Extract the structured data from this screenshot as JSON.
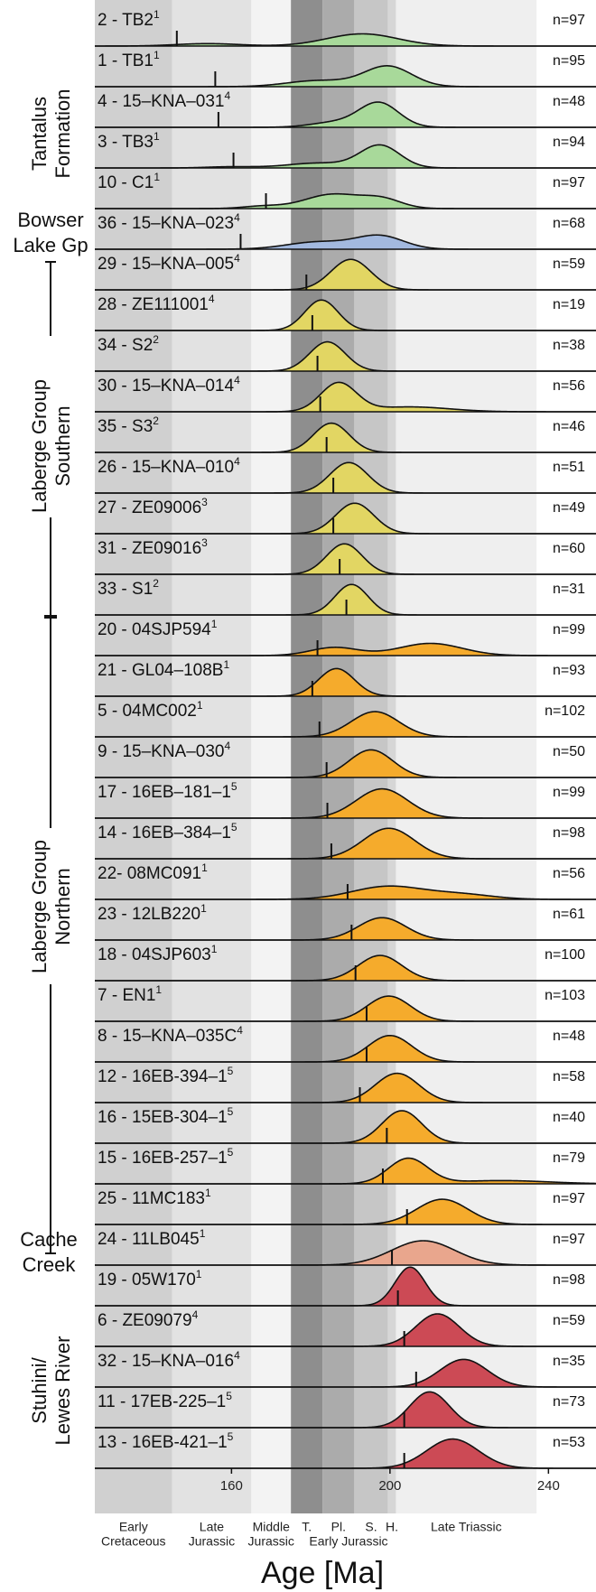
{
  "chart_data": {
    "type": "ridgeline",
    "x_label": "Age [Ma]",
    "xlim": [
      125.5,
      252
    ],
    "xticks": [
      160,
      200,
      240
    ],
    "periods": [
      {
        "lines": [
          "Early",
          "Cretaceous"
        ],
        "start": 125.5,
        "end": 145,
        "color": "#d0d0d0"
      },
      {
        "lines": [
          "Late",
          "Jurassic"
        ],
        "start": 145,
        "end": 165,
        "color": "#e2e2e2"
      },
      {
        "lines": [
          "Middle",
          "Jurassic"
        ],
        "start": 165,
        "end": 175,
        "color": "#f3f3f3"
      },
      {
        "lines": [
          "T."
        ],
        "start": 175,
        "end": 183,
        "color": "#8e8e8e"
      },
      {
        "lines": [
          "Pl."
        ],
        "start": 183,
        "end": 191,
        "color": "#ababab"
      },
      {
        "lines": [
          "S."
        ],
        "start": 191,
        "end": 199.5,
        "color": "#c6c6c6"
      },
      {
        "lines": [
          "H."
        ],
        "start": 199.5,
        "end": 201.5,
        "color": "#d6d6d6"
      },
      {
        "lines": [
          "Late Triassic"
        ],
        "start": 201.5,
        "end": 237,
        "color": "#efefef"
      }
    ],
    "era_label": "Early Jurassic",
    "groups": [
      {
        "lines": [
          "Tantalus",
          "Formation"
        ]
      },
      {
        "lines": [
          "Bowser",
          "Lake Gp"
        ]
      },
      {
        "lines": [
          "Laberge Group",
          "Southern"
        ]
      },
      {
        "lines": [
          "Laberge Group",
          "Northern"
        ]
      },
      {
        "lines": [
          "Cache",
          "Creek"
        ]
      },
      {
        "lines": [
          "Stuhini/",
          "Lewes River"
        ]
      }
    ],
    "samples": [
      {
        "label": "2 - TB2",
        "ref": "1",
        "n": "n=97",
        "color": "#a8d99a",
        "mda": 146.2,
        "peaks": [
          [
            193,
            9,
            0.3
          ],
          [
            154,
            8,
            0.06
          ]
        ]
      },
      {
        "label": "1 - TB1",
        "ref": "1",
        "n": "n=95",
        "color": "#a8d99a",
        "mda": 155.9,
        "peaks": [
          [
            199.5,
            6,
            0.5
          ],
          [
            182,
            8,
            0.15
          ]
        ]
      },
      {
        "label": "4 - 15–KNA–031",
        "ref": "4",
        "n": "n=48",
        "color": "#a8d99a",
        "mda": 156.7,
        "peaks": [
          [
            197.2,
            5,
            0.6
          ],
          [
            186,
            6,
            0.12
          ]
        ]
      },
      {
        "label": "3 - TB3",
        "ref": "1",
        "n": "n=94",
        "color": "#a8d99a",
        "mda": 160.5,
        "peaks": [
          [
            197.5,
            5,
            0.55
          ],
          [
            182,
            8,
            0.12
          ],
          [
            160,
            6,
            0.03
          ]
        ]
      },
      {
        "label": "10 - C1",
        "ref": "1",
        "n": "n=97",
        "color": "#a8d99a",
        "mda": 168.7,
        "peaks": [
          [
            185.5,
            7,
            0.35
          ],
          [
            198,
            5,
            0.22
          ],
          [
            168,
            5,
            0.06
          ]
        ]
      },
      {
        "label": "36 - 15–KNA–023",
        "ref": "4",
        "n": "n=68",
        "color": "#a3b9df",
        "mda": 162.3,
        "peaks": [
          [
            197.5,
            6,
            0.32
          ],
          [
            182,
            8,
            0.18
          ]
        ]
      },
      {
        "label": "29 - 15–KNA–005",
        "ref": "4",
        "n": "n=59",
        "color": "#e2d663",
        "mda": 178.9,
        "peaks": [
          [
            190.1,
            5,
            0.75
          ]
        ]
      },
      {
        "label": "28 - ZE111001",
        "ref": "4",
        "n": "n=19",
        "color": "#e2d663",
        "mda": 180.4,
        "peaks": [
          [
            182.7,
            4.2,
            0.75
          ]
        ]
      },
      {
        "label": "34 - S2",
        "ref": "2",
        "n": "n=38",
        "color": "#e2d663",
        "mda": 181.7,
        "peaks": [
          [
            184.2,
            4.5,
            0.72
          ]
        ]
      },
      {
        "label": "30 - 15–KNA–014",
        "ref": "4",
        "n": "n=56",
        "color": "#e2d663",
        "mda": 182.4,
        "peaks": [
          [
            187,
            4.5,
            0.7
          ],
          [
            205,
            10,
            0.12
          ]
        ]
      },
      {
        "label": "35 - S3",
        "ref": "2",
        "n": "n=46",
        "color": "#e2d663",
        "mda": 184,
        "peaks": [
          [
            185.2,
            4.5,
            0.72
          ]
        ]
      },
      {
        "label": "26 - 15–KNA–010",
        "ref": "4",
        "n": "n=51",
        "color": "#e2d663",
        "mda": 185.7,
        "peaks": [
          [
            189.6,
            4.8,
            0.75
          ]
        ]
      },
      {
        "label": "27 - ZE09006",
        "ref": "3",
        "n": "n=49",
        "color": "#e2d663",
        "mda": 185.7,
        "peaks": [
          [
            191.1,
            4.8,
            0.75
          ]
        ]
      },
      {
        "label": "31 - ZE09016",
        "ref": "3",
        "n": "n=60",
        "color": "#e2d663",
        "mda": 187.3,
        "peaks": [
          [
            188.5,
            4.5,
            0.75
          ]
        ]
      },
      {
        "label": "33 - S1",
        "ref": "2",
        "n": "n=31",
        "color": "#e2d663",
        "mda": 189,
        "peaks": [
          [
            190.3,
            4.2,
            0.75
          ]
        ]
      },
      {
        "label": "20 - 04SJP594",
        "ref": "1",
        "n": "n=99",
        "color": "#f5ab2c",
        "mda": 181.7,
        "peaks": [
          [
            186,
            6,
            0.2
          ],
          [
            210.2,
            8,
            0.3
          ]
        ]
      },
      {
        "label": "21 - GL04–108B",
        "ref": "1",
        "n": "n=93",
        "color": "#f5ab2c",
        "mda": 180.4,
        "peaks": [
          [
            186.5,
            4.5,
            0.68
          ]
        ]
      },
      {
        "label": "5 - 04MC002",
        "ref": "1",
        "n": "n=102",
        "color": "#f5ab2c",
        "mda": 182.2,
        "peaks": [
          [
            196.2,
            6,
            0.62
          ]
        ]
      },
      {
        "label": "9 - 15–KNA–030",
        "ref": "4",
        "n": "n=50",
        "color": "#f5ab2c",
        "mda": 184,
        "peaks": [
          [
            195.2,
            5.5,
            0.68
          ]
        ]
      },
      {
        "label": "17 - 16EB–181–1",
        "ref": "5",
        "n": "n=99",
        "color": "#f5ab2c",
        "mda": 184.2,
        "peaks": [
          [
            198,
            6.5,
            0.72
          ]
        ]
      },
      {
        "label": "14 - 16EB–384–1",
        "ref": "5",
        "n": "n=98",
        "color": "#f5ab2c",
        "mda": 185.2,
        "peaks": [
          [
            199.7,
            6.5,
            0.75
          ]
        ]
      },
      {
        "label": "22- 08MC091",
        "ref": "1",
        "n": "n=56",
        "color": "#f5ab2c",
        "mda": 189.3,
        "peaks": [
          [
            199.5,
            9,
            0.32
          ],
          [
            218,
            8,
            0.12
          ]
        ]
      },
      {
        "label": "23 - 12LB220",
        "ref": "1",
        "n": "n=61",
        "color": "#f5ab2c",
        "mda": 190.3,
        "peaks": [
          [
            198,
            6,
            0.55
          ]
        ]
      },
      {
        "label": "18 - 04SJP603",
        "ref": "1",
        "n": "n=100",
        "color": "#f5ab2c",
        "mda": 191.3,
        "peaks": [
          [
            197.5,
            5.5,
            0.62
          ]
        ]
      },
      {
        "label": "7 - EN1",
        "ref": "1",
        "n": "n=103",
        "color": "#f5ab2c",
        "mda": 194.1,
        "peaks": [
          [
            199.7,
            5.5,
            0.62
          ]
        ]
      },
      {
        "label": "8 - 15–KNA–035C",
        "ref": "4",
        "n": "n=48",
        "color": "#f5ab2c",
        "mda": 194.1,
        "peaks": [
          [
            200,
            5.5,
            0.65
          ]
        ]
      },
      {
        "label": "12 - 16EB-394–1",
        "ref": "5",
        "n": "n=58",
        "color": "#f5ab2c",
        "mda": 192.4,
        "peaks": [
          [
            201.8,
            5.5,
            0.72
          ]
        ]
      },
      {
        "label": "16 - 15EB-304–1",
        "ref": "5",
        "n": "n=40",
        "color": "#f5ab2c",
        "mda": 199.2,
        "peaks": [
          [
            203,
            5,
            0.8
          ]
        ]
      },
      {
        "label": "15 - 16EB-257–1",
        "ref": "5",
        "n": "n=79",
        "color": "#f5ab2c",
        "mda": 198.2,
        "peaks": [
          [
            204.6,
            5,
            0.62
          ],
          [
            228,
            12,
            0.08
          ]
        ]
      },
      {
        "label": "25 - 11MC183",
        "ref": "1",
        "n": "n=97",
        "color": "#f5ab2c",
        "mda": 204.3,
        "peaks": [
          [
            213.2,
            6.5,
            0.62
          ]
        ]
      },
      {
        "label": "24 - 11LB045",
        "ref": "1",
        "n": "n=97",
        "color": "#e9a68d",
        "mda": 200.5,
        "peaks": [
          [
            208.4,
            8,
            0.6
          ]
        ]
      },
      {
        "label": "19 - 05W170",
        "ref": "1",
        "n": "n=98",
        "color": "#cc4a55",
        "mda": 202,
        "peaks": [
          [
            205.1,
            3.8,
            0.95
          ]
        ]
      },
      {
        "label": "6 - ZE09079",
        "ref": "4",
        "n": "n=59",
        "color": "#cc4a55",
        "mda": 203.6,
        "peaks": [
          [
            212,
            5.5,
            0.8
          ]
        ]
      },
      {
        "label": "32 - 15–KNA–016",
        "ref": "4",
        "n": "n=35",
        "color": "#cc4a55",
        "mda": 206.6,
        "peaks": [
          [
            218.6,
            6,
            0.68
          ]
        ]
      },
      {
        "label": "11 - 17EB-225–1",
        "ref": "5",
        "n": "n=73",
        "color": "#cc4a55",
        "mda": 203.6,
        "peaks": [
          [
            210,
            5,
            0.88
          ]
        ]
      },
      {
        "label": "13 - 16EB-421–1",
        "ref": "5",
        "n": "n=53",
        "color": "#cc4a55",
        "mda": 203.6,
        "peaks": [
          [
            215.8,
            6.5,
            0.72
          ]
        ]
      }
    ]
  }
}
